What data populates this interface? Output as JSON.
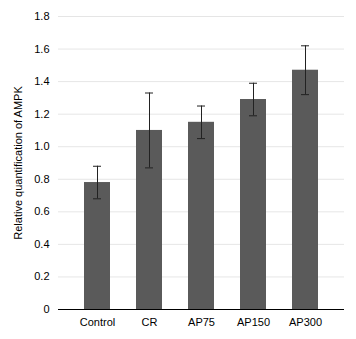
{
  "chart_data": {
    "type": "bar",
    "categories": [
      "Control",
      "CR",
      "AP75",
      "AP150",
      "AP300"
    ],
    "values": [
      0.78,
      1.1,
      1.15,
      1.29,
      1.47
    ],
    "errors": [
      0.1,
      0.23,
      0.1,
      0.1,
      0.15
    ],
    "color": "#5a5a5a",
    "ylabel": "Relative quantification of AMPK",
    "ylim": [
      0,
      1.8
    ],
    "yticks": [
      0,
      0.2,
      0.4,
      0.6,
      0.8,
      {
        "value": 1.0,
        "label": "1.0"
      },
      1.2,
      1.4,
      1.6,
      1.8
    ],
    "grid": true
  }
}
